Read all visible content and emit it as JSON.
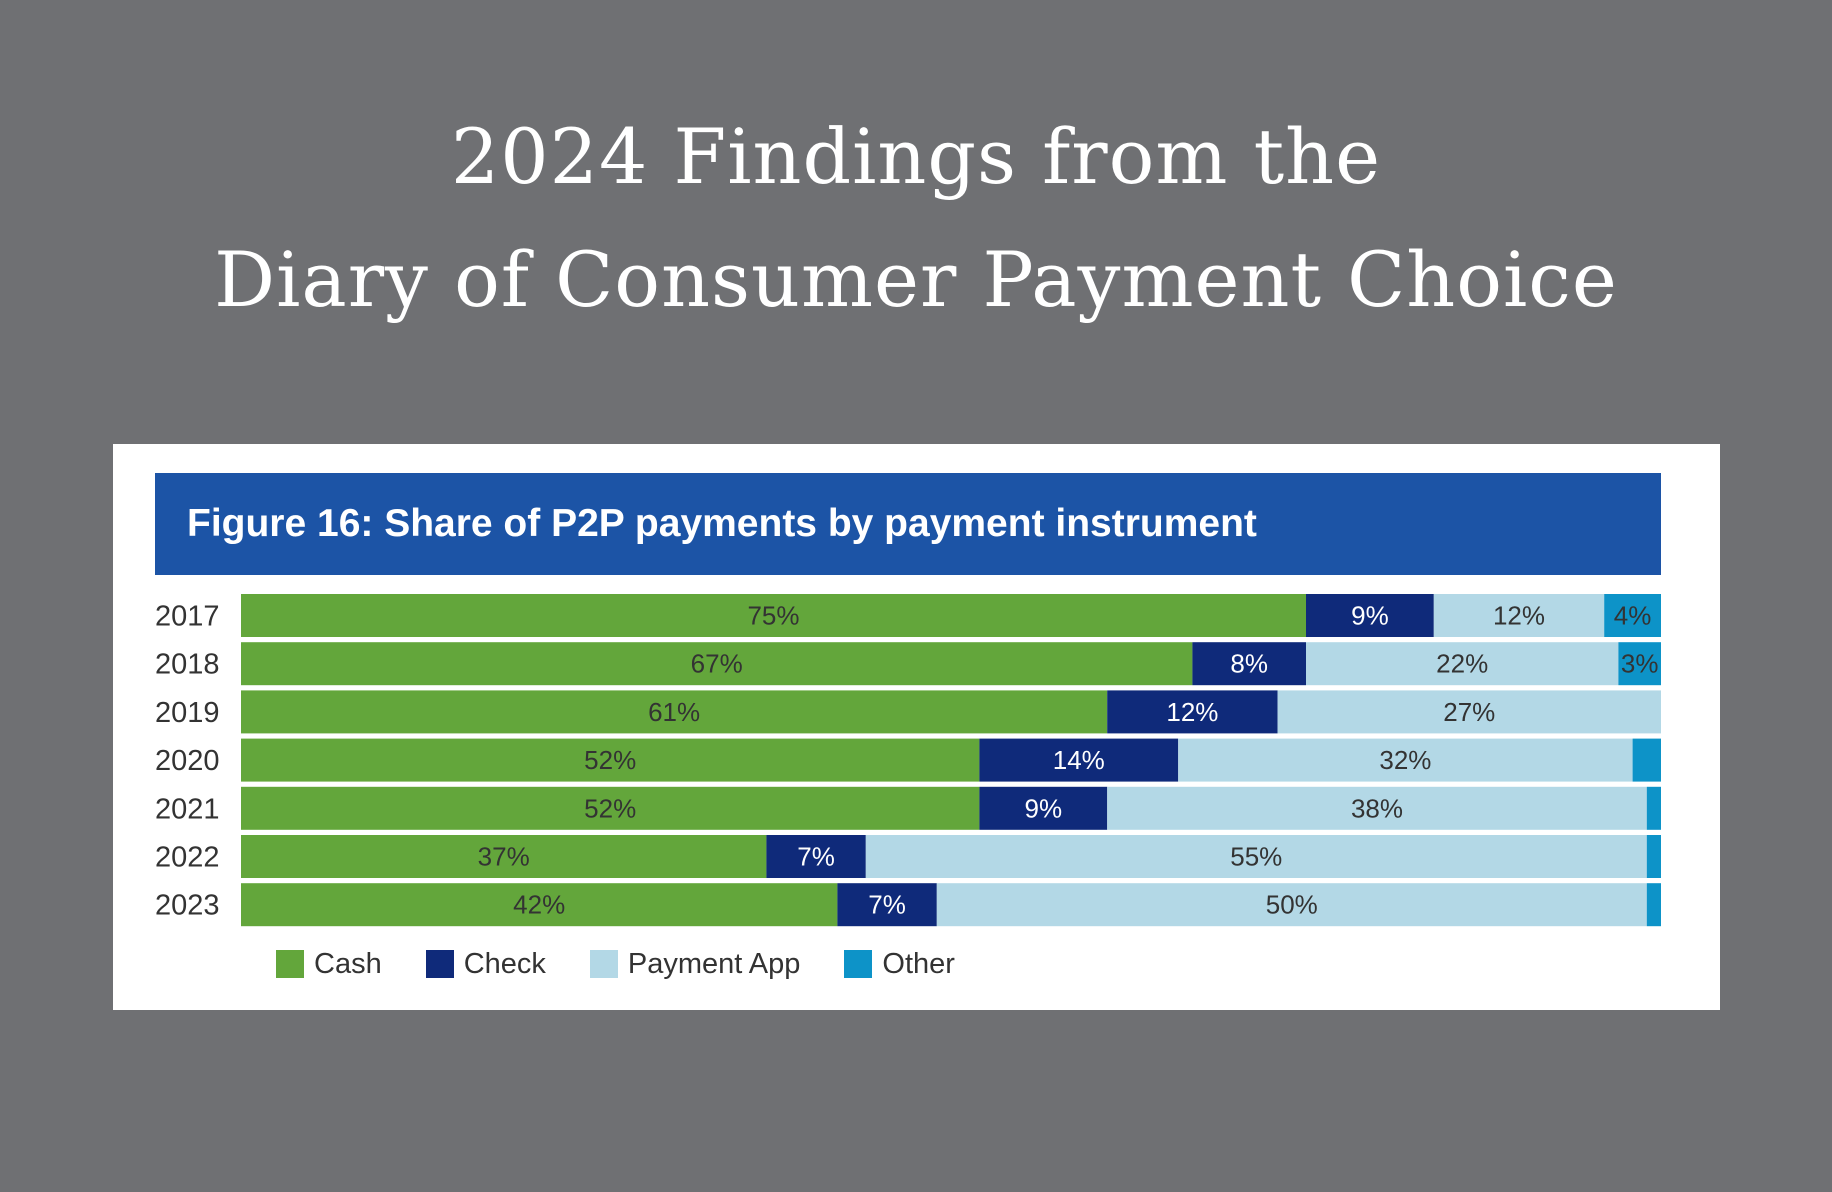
{
  "page": {
    "headline_line1": "2024 Findings from the",
    "headline_line2": "Diary of Consumer Payment Choice"
  },
  "chart_data": {
    "type": "bar",
    "orientation": "horizontal",
    "stacked": true,
    "normalized": true,
    "title": "Figure 16: Share of P2P payments by payment instrument",
    "categories": [
      "2017",
      "2018",
      "2019",
      "2020",
      "2021",
      "2022",
      "2023"
    ],
    "series": [
      {
        "name": "Cash",
        "color": "#63a63b",
        "values": [
          75,
          67,
          61,
          52,
          52,
          37,
          42
        ],
        "labels": [
          "75%",
          "67%",
          "61%",
          "52%",
          "52%",
          "37%",
          "42%"
        ]
      },
      {
        "name": "Check",
        "color": "#0f2a7a",
        "values": [
          9,
          8,
          12,
          14,
          9,
          7,
          7
        ],
        "labels": [
          "9%",
          "8%",
          "12%",
          "14%",
          "9%",
          "7%",
          "7%"
        ]
      },
      {
        "name": "Payment App",
        "color": "#b3d8e6",
        "values": [
          12,
          22,
          27,
          32,
          38,
          55,
          50
        ],
        "labels": [
          "12%",
          "22%",
          "27%",
          "32%",
          "38%",
          "55%",
          "50%"
        ]
      },
      {
        "name": "Other",
        "color": "#0d93c8",
        "values": [
          4,
          3,
          0,
          2,
          1,
          1,
          1
        ],
        "labels": [
          "4%",
          "3%",
          "",
          "",
          "",
          "",
          ""
        ]
      }
    ],
    "xlim": [
      0,
      100
    ],
    "grid": false,
    "legend_position": "bottom-left"
  }
}
